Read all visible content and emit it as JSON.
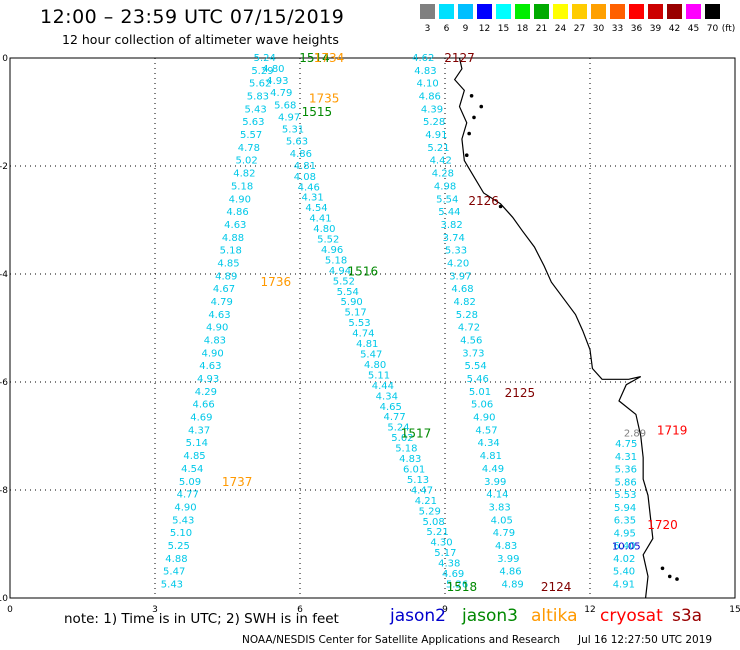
{
  "header": {
    "title": "12:00 – 23:59 UTC 07/15/2019",
    "subtitle": "12 hour collection of altimeter wave heights"
  },
  "color_scale": {
    "labels": [
      "3",
      "6",
      "9",
      "12",
      "15",
      "18",
      "21",
      "24",
      "27",
      "30",
      "33",
      "36",
      "39",
      "42",
      "45",
      "70",
      "(ft)"
    ],
    "colors": [
      "#808080",
      "#00e0ff",
      "#00bfff",
      "#0000ff",
      "#00ffff",
      "#00ee00",
      "#00aa00",
      "#ffff00",
      "#ffcc00",
      "#ffa000",
      "#ff6000",
      "#ff0000",
      "#cc0000",
      "#990000",
      "#ff00ff",
      "#000000"
    ]
  },
  "map": {
    "x_ticks": [
      "0",
      "3",
      "6",
      "9",
      "12",
      "15"
    ],
    "y_ticks": [
      "0",
      "-2",
      "-4",
      "-6",
      "-8",
      "-10"
    ],
    "x_range": [
      0,
      15
    ],
    "y_range": [
      -10,
      0
    ],
    "pass_labels": [
      {
        "text": "1514",
        "x": 6.3,
        "y": -0.0,
        "color": "#008800"
      },
      {
        "text": "1734",
        "x": 6.6,
        "y": -0.0,
        "color": "#ff9900"
      },
      {
        "text": "1735",
        "x": 6.5,
        "y": -0.75,
        "color": "#ff9900"
      },
      {
        "text": "1515",
        "x": 6.35,
        "y": -1.0,
        "color": "#008800"
      },
      {
        "text": "1516",
        "x": 7.3,
        "y": -3.95,
        "color": "#008800"
      },
      {
        "text": "1736",
        "x": 5.5,
        "y": -4.15,
        "color": "#ff9900"
      },
      {
        "text": "1517",
        "x": 8.4,
        "y": -6.95,
        "color": "#008800"
      },
      {
        "text": "1737",
        "x": 4.7,
        "y": -7.85,
        "color": "#ff9900"
      },
      {
        "text": "1518",
        "x": 9.35,
        "y": -9.8,
        "color": "#008800"
      },
      {
        "text": "2127",
        "x": 9.3,
        "y": -0.0,
        "color": "#800000"
      },
      {
        "text": "2126",
        "x": 9.8,
        "y": -2.65,
        "color": "#800000"
      },
      {
        "text": "2125",
        "x": 10.55,
        "y": -6.2,
        "color": "#800000"
      },
      {
        "text": "2124",
        "x": 11.3,
        "y": -9.8,
        "color": "#800000"
      },
      {
        "text": "1719",
        "x": 13.7,
        "y": -6.9,
        "color": "#ff0000"
      },
      {
        "text": "1720",
        "x": 13.5,
        "y": -8.65,
        "color": "#ff0000"
      }
    ],
    "tracks": [
      {
        "x0": 5.27,
        "y0": 0.0,
        "x1": 3.35,
        "y1": -9.75,
        "values": [
          "5.24",
          "5.29",
          "5.62",
          "5.83",
          "5.43",
          "5.63",
          "5.57",
          "4.78",
          "5.02",
          "4.82",
          "5.18",
          "4.90",
          "4.86",
          "4.63",
          "4.88",
          "5.18",
          "4.85",
          "4.89",
          "4.67",
          "4.79",
          "4.63",
          "4.90",
          "4.83",
          "4.90",
          "4.63",
          "4.93",
          "4.29",
          "4.66",
          "4.69",
          "4.37",
          "5.14",
          "4.85",
          "4.54",
          "5.09",
          "4.77",
          "4.90",
          "5.43",
          "5.10",
          "5.25",
          "4.88",
          "5.47",
          "5.43"
        ]
      },
      {
        "x0": 5.45,
        "y0": -0.2,
        "x1": 6.1,
        "y1": -2.0,
        "values": [
          "4.80",
          "4.93",
          "4.79",
          "5.68",
          "4.97",
          "5.31",
          "5.63",
          "4.86",
          "4.81"
        ]
      },
      {
        "x0": 6.1,
        "y0": -2.2,
        "x1": 9.25,
        "y1": -9.75,
        "values": [
          "4.08",
          "4.46",
          "4.31",
          "4.54",
          "4.41",
          "4.80",
          "5.52",
          "4.96",
          "5.18",
          "4.94",
          "5.52",
          "5.54",
          "5.90",
          "5.17",
          "5.53",
          "4.74",
          "4.81",
          "5.47",
          "4.80",
          "5.11",
          "4.44",
          "4.34",
          "4.65",
          "4.77",
          "5.24",
          "5.02",
          "5.18",
          "4.83",
          "6.01",
          "5.13",
          "4.47",
          "4.21",
          "5.29",
          "5.08",
          "5.21",
          "4.30",
          "5.17",
          "4.38",
          "4.69",
          "5.26"
        ]
      },
      {
        "x0": 8.55,
        "y0": -0.0,
        "x1": 10.4,
        "y1": -9.75,
        "values": [
          "4.62",
          "4.83",
          "4.10",
          "4.86",
          "4.39",
          "5.28",
          "4.91",
          "5.21",
          "4.42",
          "4.28",
          "4.98",
          "5.54",
          "5.44",
          "3.82",
          "3.74",
          "5.33",
          "4.20",
          "3.97",
          "4.68",
          "4.82",
          "5.28",
          "4.72",
          "4.56",
          "3.73",
          "5.54",
          "5.46",
          "5.01",
          "5.06",
          "4.90",
          "4.57",
          "4.34",
          "4.81",
          "4.49",
          "3.99",
          "4.14",
          "3.83",
          "4.05",
          "4.79",
          "4.83",
          "3.99",
          "4.86",
          "4.89"
        ]
      },
      {
        "x0": 12.75,
        "y0": -7.15,
        "x1": 12.7,
        "y1": -9.75,
        "values": [
          "4.75",
          "4.31",
          "5.36",
          "5.86",
          "5.53",
          "5.94",
          "6.35",
          "4.95",
          "6.40",
          "4.02",
          "5.40",
          "4.91"
        ]
      }
    ],
    "special_values": [
      {
        "text": "2.89",
        "x": 12.93,
        "y": -6.95,
        "color": "#808080"
      },
      {
        "text": "10.05",
        "x": 12.75,
        "y": -9.05,
        "color": "#0000cc"
      }
    ]
  },
  "footer": {
    "note": "note: 1) Time is in UTC; 2) SWH is in feet",
    "legend": [
      {
        "text": "jason2",
        "color": "#0000cc",
        "x": 390
      },
      {
        "text": "jason3",
        "color": "#008800",
        "x": 462
      },
      {
        "text": "altika",
        "color": "#ff9900",
        "x": 531
      },
      {
        "text": "cryosat",
        "color": "#ff0000",
        "x": 600
      },
      {
        "text": "s3a",
        "color": "#990000",
        "x": 672
      }
    ],
    "credit": "NOAA/NESDIS Center for Satellite Applications and Research",
    "timestamp": "Jul 16 12:27:50 UTC 2019"
  }
}
